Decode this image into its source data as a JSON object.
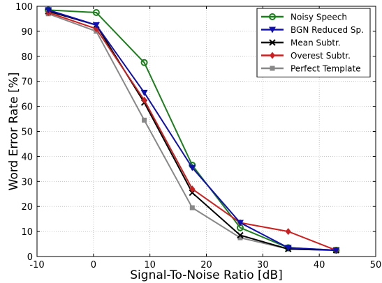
{
  "chart_data": {
    "type": "line",
    "title": "",
    "xlabel": "Signal-To-Noise Ratio [dB]",
    "ylabel": "Word Error Rate [%]",
    "xlim": [
      -10,
      50
    ],
    "ylim": [
      0,
      100
    ],
    "xticks": [
      -10,
      0,
      10,
      20,
      30,
      40,
      50
    ],
    "yticks": [
      0,
      10,
      20,
      30,
      40,
      50,
      60,
      70,
      80,
      90,
      100
    ],
    "grid": true,
    "legend_position": "top-right",
    "series": [
      {
        "name": "Noisy Speech",
        "color": "#1a7f1a",
        "marker": "circle",
        "x": [
          -8,
          0.5,
          9,
          17.5,
          26,
          34.5,
          43
        ],
        "y": [
          98.5,
          97.5,
          77.5,
          36.5,
          11.5,
          3.5,
          2.5
        ]
      },
      {
        "name": "BGN Reduced Sp.",
        "color": "#1010b0",
        "marker": "triangle-down",
        "x": [
          -8,
          0.5,
          9,
          17.5,
          26,
          34.5,
          43
        ],
        "y": [
          98.5,
          92.5,
          65.5,
          35.5,
          13.5,
          3.5,
          2.5
        ]
      },
      {
        "name": "Mean Subtr.",
        "color": "#000000",
        "marker": "x",
        "x": [
          -8,
          0.5,
          9,
          17.5,
          26,
          34.5,
          43
        ],
        "y": [
          98,
          92.5,
          61.5,
          25.5,
          8.5,
          3,
          2.5
        ]
      },
      {
        "name": "Overest Subtr.",
        "color": "#cc2020",
        "marker": "diamond",
        "x": [
          -8,
          0.5,
          9,
          17.5,
          26,
          34.5,
          43
        ],
        "y": [
          97.5,
          91,
          62.5,
          27,
          13.5,
          10,
          2.5
        ]
      },
      {
        "name": "Perfect Template",
        "color": "#888888",
        "marker": "square",
        "x": [
          -8,
          0.5,
          9,
          17.5,
          26,
          34.5,
          43
        ],
        "y": [
          97,
          90,
          54.5,
          19.5,
          7.5,
          3,
          2.5
        ]
      }
    ]
  }
}
